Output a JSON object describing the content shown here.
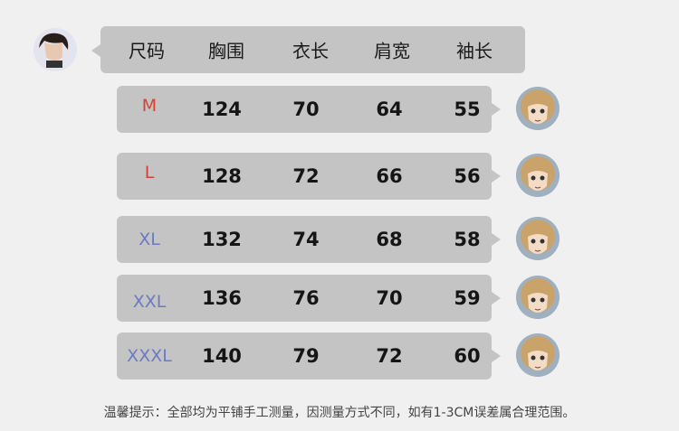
{
  "colors": {
    "bubble": "#c4c4c4",
    "background": "#f0f0f0",
    "size_red": "#d9412f",
    "size_blue": "#6a7bc2"
  },
  "header": {
    "columns": [
      "尺码",
      "胸围",
      "衣长",
      "肩宽",
      "袖长"
    ]
  },
  "rows": [
    {
      "size": "M",
      "chest": "124",
      "length": "70",
      "shoulder": "64",
      "sleeve": "55",
      "size_color": "#d9412f"
    },
    {
      "size": "L",
      "chest": "128",
      "length": "72",
      "shoulder": "66",
      "sleeve": "56",
      "size_color": "#d9412f"
    },
    {
      "size": "XL",
      "chest": "132",
      "length": "74",
      "shoulder": "68",
      "sleeve": "58",
      "size_color": "#6a7bc2"
    },
    {
      "size": "XXL",
      "chest": "136",
      "length": "76",
      "shoulder": "70",
      "sleeve": "59",
      "size_color": "#6a7bc2"
    },
    {
      "size": "XXXL",
      "chest": "140",
      "length": "79",
      "shoulder": "72",
      "sleeve": "60",
      "size_color": "#6a7bc2"
    }
  ],
  "note": "温馨提示：全部均为平铺手工测量，因测量方式不同，如有1-3CM误差属合理范围。"
}
